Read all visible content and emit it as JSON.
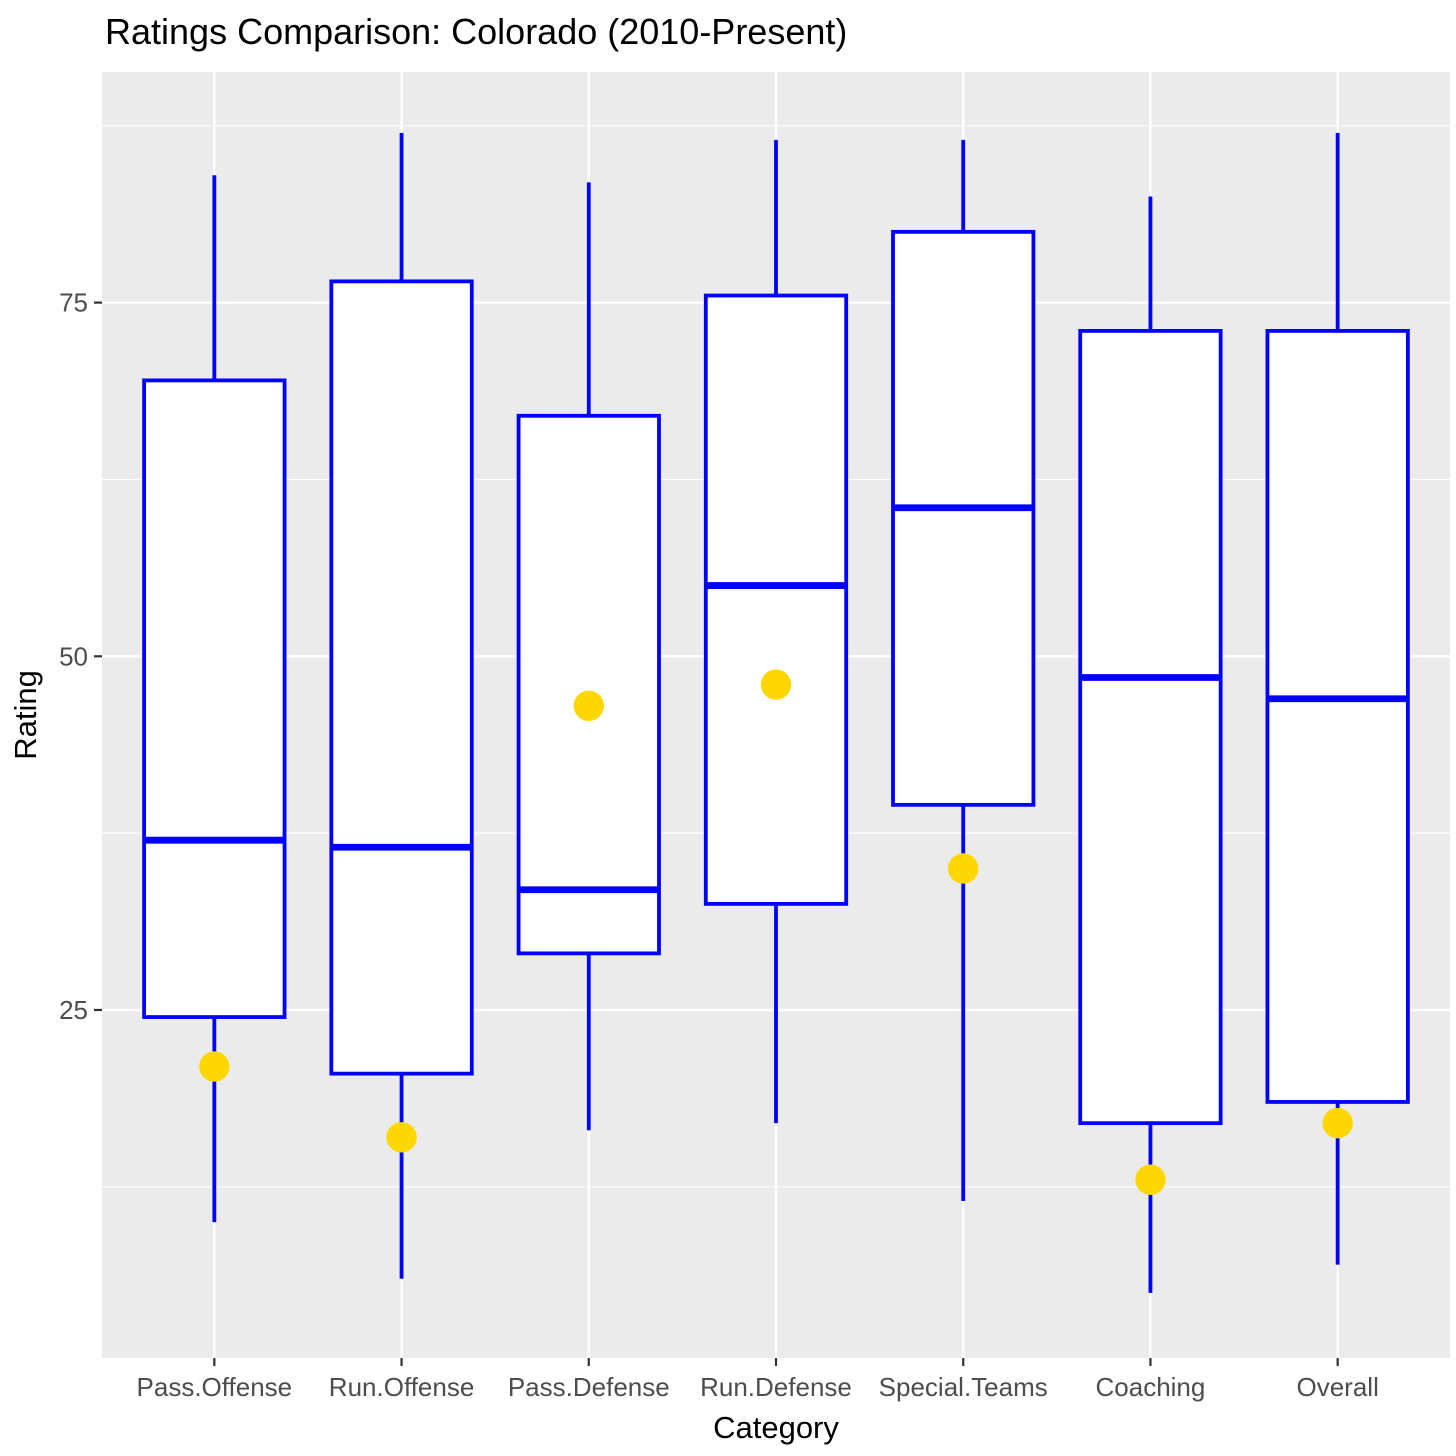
{
  "chart_data": {
    "type": "boxplot",
    "title": "Ratings Comparison: Colorado (2010-Present)",
    "xlabel": "Category",
    "ylabel": "Rating",
    "categories": [
      "Pass.Offense",
      "Run.Offense",
      "Pass.Defense",
      "Run.Defense",
      "Special.Teams",
      "Coaching",
      "Overall"
    ],
    "boxes": [
      {
        "category": "Pass.Offense",
        "whisker_low": 10,
        "q1": 24.5,
        "median": 37,
        "q3": 69.5,
        "whisker_high": 84
      },
      {
        "category": "Run.Offense",
        "whisker_low": 6,
        "q1": 20.5,
        "median": 36.5,
        "q3": 76.5,
        "whisker_high": 87
      },
      {
        "category": "Pass.Defense",
        "whisker_low": 16.5,
        "q1": 29,
        "median": 33.5,
        "q3": 67,
        "whisker_high": 83.5
      },
      {
        "category": "Run.Defense",
        "whisker_low": 17,
        "q1": 32.5,
        "median": 55,
        "q3": 75.5,
        "whisker_high": 86.5
      },
      {
        "category": "Special.Teams",
        "whisker_low": 11.5,
        "q1": 39.5,
        "median": 60.5,
        "q3": 80,
        "whisker_high": 86.5
      },
      {
        "category": "Coaching",
        "whisker_low": 5,
        "q1": 17,
        "median": 48.5,
        "q3": 73,
        "whisker_high": 82.5
      },
      {
        "category": "Overall",
        "whisker_low": 7,
        "q1": 18.5,
        "median": 47,
        "q3": 73,
        "whisker_high": 87
      }
    ],
    "points": [
      {
        "category": "Pass.Offense",
        "value": 21
      },
      {
        "category": "Run.Offense",
        "value": 16
      },
      {
        "category": "Pass.Defense",
        "value": 46.5
      },
      {
        "category": "Run.Defense",
        "value": 48
      },
      {
        "category": "Special.Teams",
        "value": 35
      },
      {
        "category": "Coaching",
        "value": 13
      },
      {
        "category": "Overall",
        "value": 17
      }
    ],
    "yticks": [
      25,
      50,
      75
    ],
    "yticks_minor": [
      12.5,
      37.5,
      62.5,
      87.5
    ],
    "ylim": [
      0.4,
      91.3
    ],
    "grid": "on",
    "legend": "none",
    "colors": {
      "box_stroke": "#0000FF",
      "box_fill": "#FFFFFF",
      "point_fill": "#FFD700",
      "panel_background": "#EBEBEB",
      "gridline": "#FFFFFF",
      "tick_label": "#4D4D4D",
      "tick_mark": "#333333",
      "text": "#000000"
    }
  }
}
